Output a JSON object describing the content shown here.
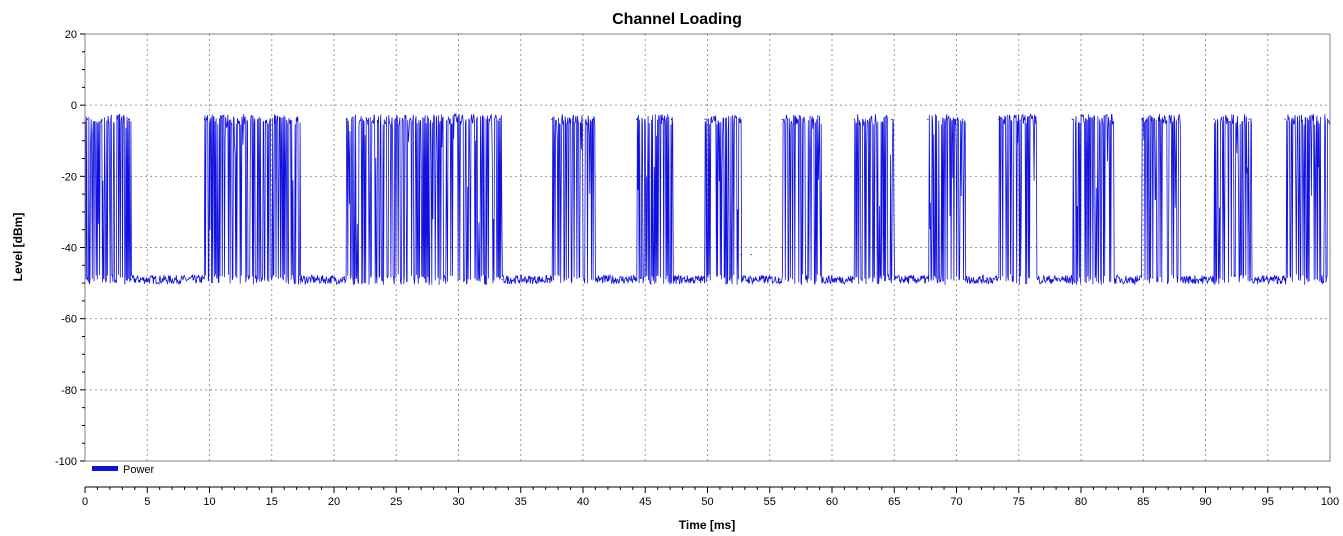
{
  "chart_data": {
    "type": "line",
    "title": "Channel Loading",
    "xlabel": "Time [ms]",
    "ylabel": "Level [dBm]",
    "xlim": [
      0,
      100
    ],
    "ylim": [
      -100,
      20
    ],
    "x_ticks": [
      "0",
      "5",
      "10",
      "15",
      "20",
      "25",
      "30",
      "35",
      "40",
      "45",
      "50",
      "55",
      "60",
      "65",
      "70",
      "75",
      "80",
      "85",
      "90",
      "95",
      "100"
    ],
    "y_ticks": [
      "20",
      "0",
      "-20",
      "-40",
      "-60",
      "-80",
      "-100"
    ],
    "grid": true,
    "legend_position": "bottom-left",
    "series": [
      {
        "name": "Power",
        "color": "#1010e0",
        "on_level_dbm": -4,
        "off_level_dbm": -49,
        "burst_windows_ms": [
          [
            0.0,
            3.7
          ],
          [
            9.6,
            17.3
          ],
          [
            21.0,
            33.5
          ],
          [
            37.5,
            41.0
          ],
          [
            44.3,
            47.3
          ],
          [
            49.8,
            52.7
          ],
          [
            56.0,
            59.2
          ],
          [
            61.8,
            65.0
          ],
          [
            67.7,
            70.7
          ],
          [
            73.4,
            76.5
          ],
          [
            79.3,
            82.7
          ],
          [
            84.9,
            88.0
          ],
          [
            90.7,
            93.7
          ],
          [
            96.4,
            100.0
          ]
        ],
        "points": [
          [
            0,
            -49
          ],
          [
            0.2,
            -4
          ],
          [
            3.5,
            -4
          ],
          [
            3.7,
            -49
          ],
          [
            9.4,
            -49
          ],
          [
            9.6,
            -4
          ],
          [
            17.1,
            -4
          ],
          [
            17.3,
            -49
          ],
          [
            20.8,
            -49
          ],
          [
            21.0,
            -4
          ],
          [
            33.3,
            -4
          ],
          [
            33.5,
            -49
          ],
          [
            37.3,
            -49
          ],
          [
            37.5,
            -4
          ],
          [
            40.8,
            -4
          ],
          [
            41.0,
            -49
          ],
          [
            44.1,
            -49
          ],
          [
            44.3,
            -4
          ],
          [
            47.1,
            -4
          ],
          [
            47.3,
            -49
          ],
          [
            49.6,
            -49
          ],
          [
            49.8,
            -4
          ],
          [
            52.5,
            -4
          ],
          [
            52.7,
            -42
          ],
          [
            53.5,
            -42
          ],
          [
            53.8,
            -49
          ],
          [
            55.8,
            -49
          ],
          [
            56.0,
            -4
          ],
          [
            59.0,
            -4
          ],
          [
            59.2,
            -49
          ],
          [
            61.6,
            -49
          ],
          [
            61.8,
            -4
          ],
          [
            64.8,
            -4
          ],
          [
            65.0,
            -49
          ],
          [
            67.5,
            -49
          ],
          [
            67.7,
            -4
          ],
          [
            70.5,
            -4
          ],
          [
            70.7,
            -49
          ],
          [
            73.2,
            -49
          ],
          [
            73.4,
            -4
          ],
          [
            76.3,
            -4
          ],
          [
            76.5,
            -49
          ],
          [
            79.1,
            -49
          ],
          [
            79.3,
            -4
          ],
          [
            82.5,
            -4
          ],
          [
            82.7,
            -49
          ],
          [
            84.7,
            -49
          ],
          [
            84.9,
            -4
          ],
          [
            87.8,
            -4
          ],
          [
            88.0,
            -49
          ],
          [
            90.5,
            -49
          ],
          [
            90.7,
            -4
          ],
          [
            93.5,
            -4
          ],
          [
            93.7,
            -49
          ],
          [
            96.2,
            -49
          ],
          [
            96.4,
            -4
          ],
          [
            99.8,
            -4
          ],
          [
            100,
            -42
          ]
        ]
      }
    ]
  }
}
